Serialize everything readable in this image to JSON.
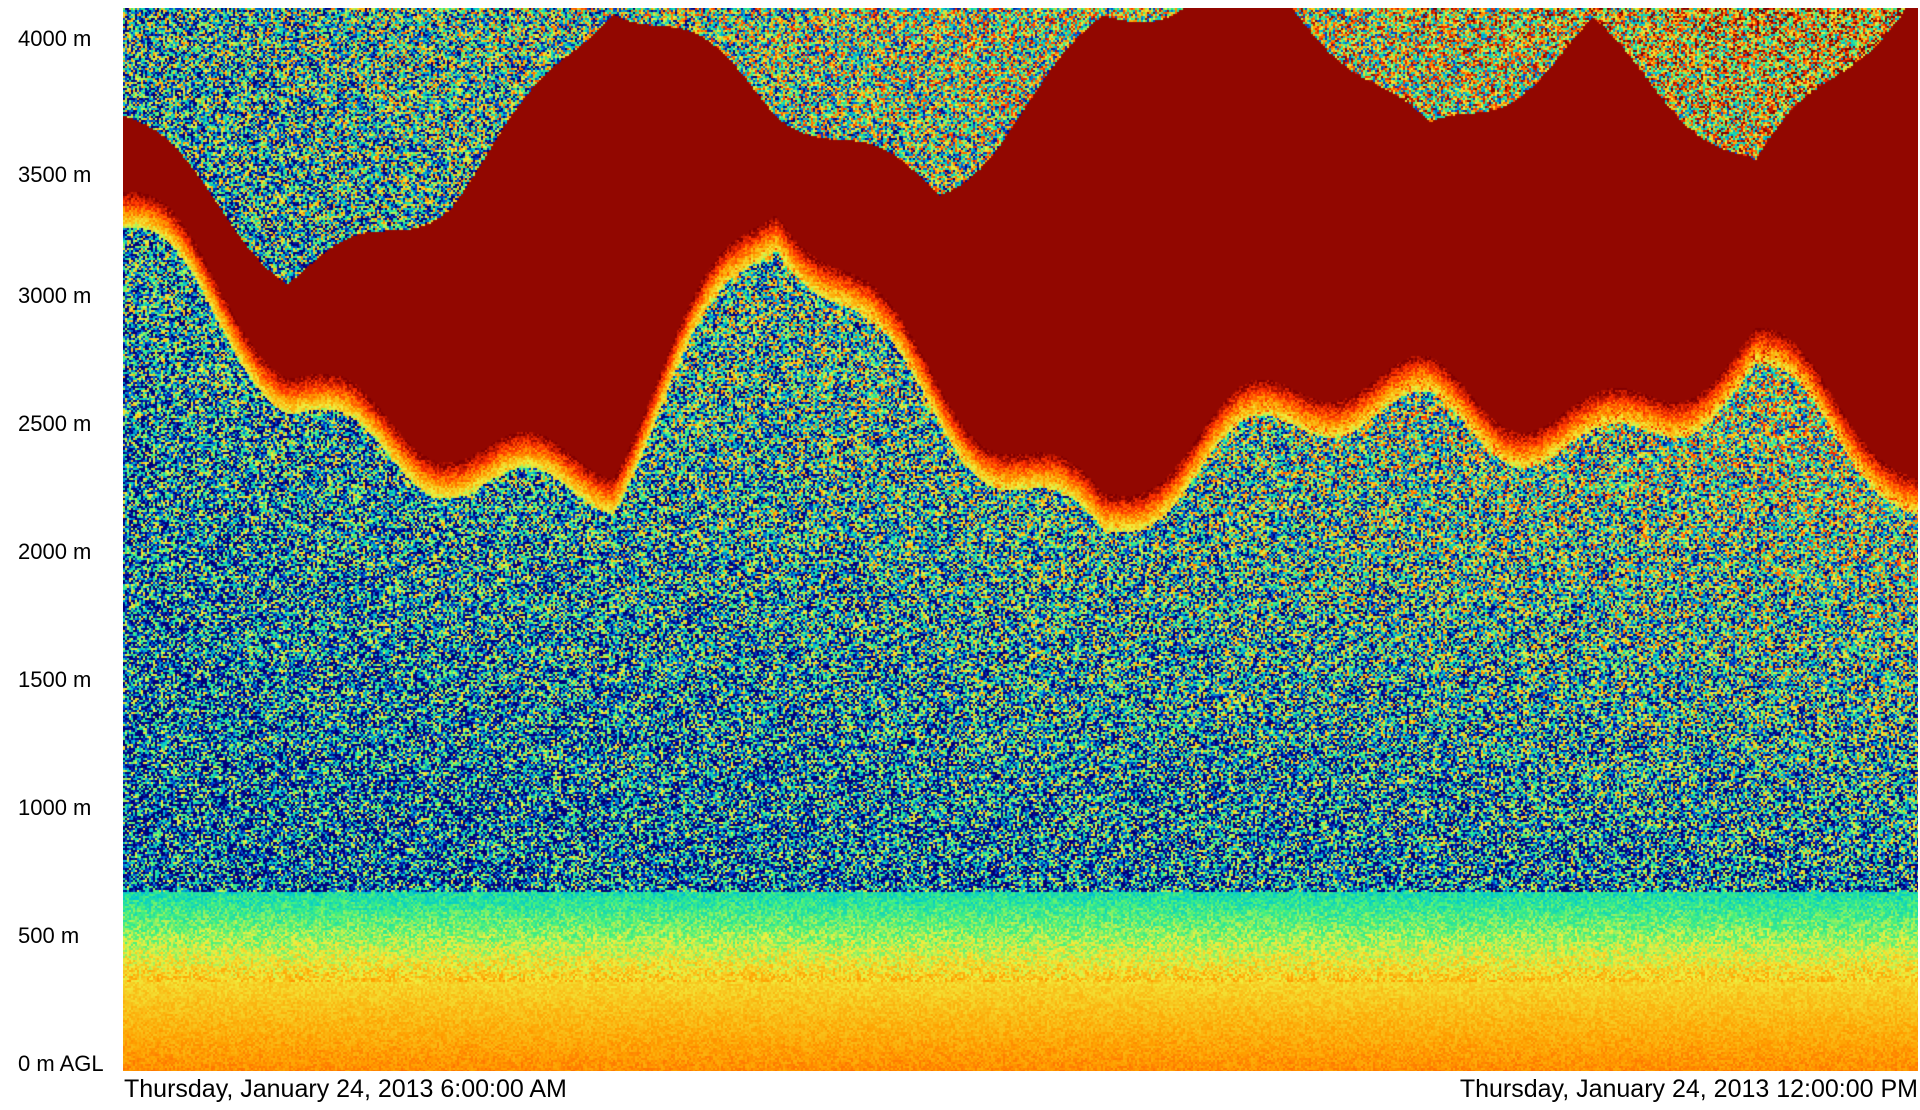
{
  "chart_data": {
    "type": "heatmap",
    "title": "",
    "y_ticks": [
      "0 m AGL",
      "500 m",
      "1000 m",
      "1500 m",
      "2000 m",
      "2500 m",
      "3000 m",
      "3500 m",
      "4000 m"
    ],
    "y_tick_values": [
      0,
      500,
      1000,
      1500,
      2000,
      2500,
      3000,
      3500,
      4000
    ],
    "ylim": [
      0,
      4150
    ],
    "x_start_label": "Thursday, January 24, 2013 6:00:00 AM",
    "x_end_label": "Thursday, January 24, 2013 12:00:00 PM",
    "colormap": [
      "#00007a",
      "#0040d0",
      "#00c8d0",
      "#40f080",
      "#f0f040",
      "#ffa000",
      "#ff3000",
      "#800000"
    ],
    "features": {
      "surface_layer_top_m": 350,
      "upper_layer_base_m": [
        3300,
        2750,
        2600,
        2350,
        3300,
        2800,
        2300,
        2500,
        2700,
        2700,
        2800,
        2200
      ],
      "upper_layer_top_m": [
        3650,
        3100,
        3500,
        4150,
        3700,
        3500,
        4150,
        4150,
        3650,
        4150,
        3500,
        4150
      ]
    }
  }
}
